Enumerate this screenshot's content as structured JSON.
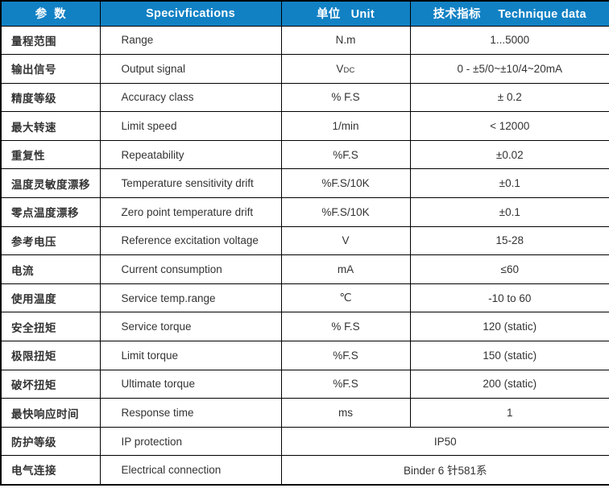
{
  "colors": {
    "header_bg": "#1181c4",
    "header_text": "#ffffff",
    "border": "#000000",
    "text": "#333333",
    "background": "#ffffff"
  },
  "table": {
    "header": {
      "parameter": "参  数",
      "specifications": "Specivfications",
      "unit": "单位   Unit",
      "technique_data": "技术指标     Technique data"
    },
    "rows": [
      {
        "param_zh": "量程范围",
        "spec_en": "Range",
        "unit": "N.m",
        "value": "1...5000"
      },
      {
        "param_zh": "输出信号",
        "spec_en": "Output signal",
        "unit": "V",
        "unit_sub": "DC",
        "value": "0 - ±5/0~±10/4~20mA"
      },
      {
        "param_zh": "精度等级",
        "spec_en": "Accuracy class",
        "unit": "% F.S",
        "value": "± 0.2"
      },
      {
        "param_zh": "最大转速",
        "spec_en": "Limit speed",
        "unit": "1/min",
        "value": "< 12000"
      },
      {
        "param_zh": "重复性",
        "spec_en": "Repeatability",
        "unit": "%F.S",
        "value": "±0.02"
      },
      {
        "param_zh": "温度灵敏度漂移",
        "spec_en": "Temperature sensitivity drift",
        "unit": "%F.S/10K",
        "value": "±0.1"
      },
      {
        "param_zh": "零点温度漂移",
        "spec_en": "Zero point temperature drift",
        "unit": "%F.S/10K",
        "value": "±0.1"
      },
      {
        "param_zh": "参考电压",
        "spec_en": "Reference excitation voltage",
        "unit": "V",
        "value": "15-28"
      },
      {
        "param_zh": "电流",
        "spec_en": "Current consumption",
        "unit": "mA",
        "value": "≤60"
      },
      {
        "param_zh": "使用温度",
        "spec_en": "Service temp.range",
        "unit": "℃",
        "value": "-10 to 60"
      },
      {
        "param_zh": "安全扭矩",
        "spec_en": "Service torque",
        "unit": "% F.S",
        "value": "120 (static)"
      },
      {
        "param_zh": "极限扭矩",
        "spec_en": "Limit torque",
        "unit": "%F.S",
        "value": "150 (static)"
      },
      {
        "param_zh": "破坏扭矩",
        "spec_en": "Ultimate torque",
        "unit": "%F.S",
        "value": "200 (static)"
      },
      {
        "param_zh": "最快响应时间",
        "spec_en": "Response time",
        "unit": "ms",
        "value": "1"
      },
      {
        "param_zh": "防护等级",
        "spec_en": "IP protection",
        "merged": true,
        "value": "IP50"
      },
      {
        "param_zh": "电气连接",
        "spec_en": "Electrical connection",
        "merged": true,
        "value": "Binder 6 针581系"
      }
    ]
  }
}
